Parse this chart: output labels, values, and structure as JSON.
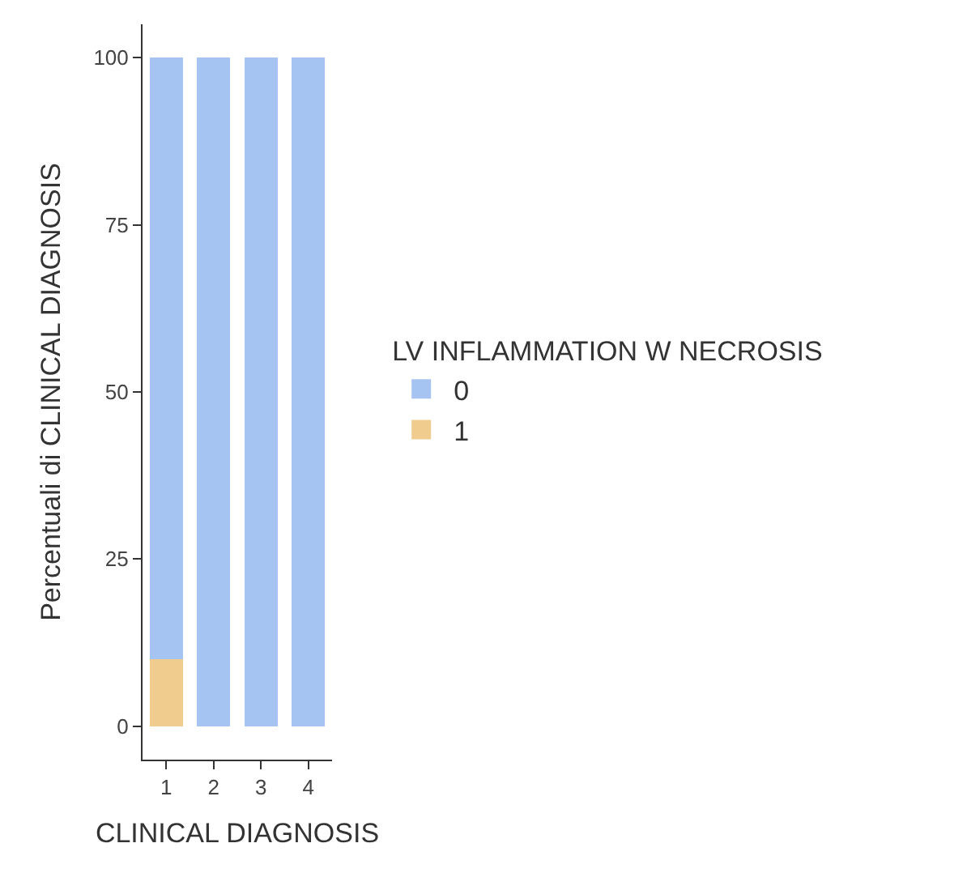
{
  "chart_data": {
    "type": "bar",
    "stacked": true,
    "xlabel": "CLINICAL DIAGNOSIS",
    "ylabel": "Percentuali di CLINICAL DIAGNOSIS",
    "legend_title": "LV INFLAMMATION W NECROSIS",
    "categories": [
      "1",
      "2",
      "3",
      "4"
    ],
    "series": [
      {
        "name": "1",
        "color": "#f0cc8f",
        "values": [
          10,
          0,
          0,
          0
        ]
      },
      {
        "name": "0",
        "color": "#a6c4f2",
        "values": [
          90,
          100,
          100,
          100
        ]
      }
    ],
    "ylim": [
      -5,
      105
    ],
    "yticks": [
      0,
      25,
      50,
      75,
      100
    ],
    "legend": "right"
  }
}
